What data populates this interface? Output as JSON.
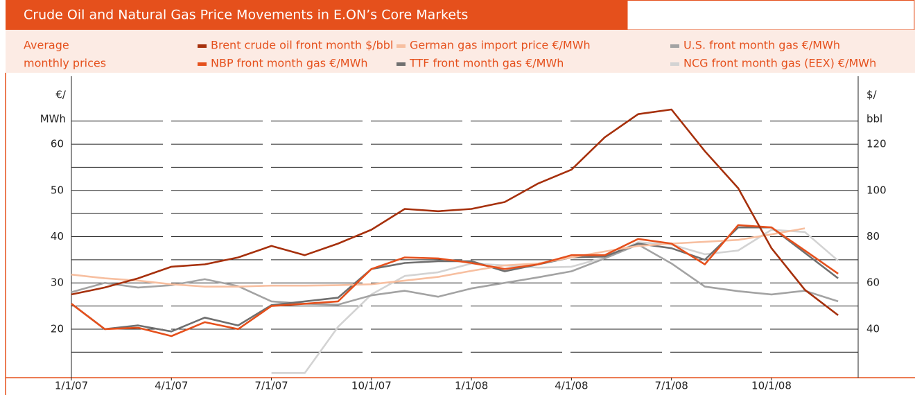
{
  "chart_data": {
    "type": "line",
    "title": "Crude Oil and Natural Gas Price Movements in E.ON’s Core Markets",
    "legend_title": [
      "Average",
      "monthly prices"
    ],
    "ylabel": [
      "€/",
      "MWh"
    ],
    "y2label": [
      "$/",
      "bbl"
    ],
    "x": [
      0,
      1,
      2,
      3,
      4,
      5,
      6,
      7,
      8,
      9,
      10,
      11,
      12,
      13,
      14,
      15,
      16,
      17,
      18,
      19,
      20,
      21,
      22,
      23
    ],
    "xlim": [
      0,
      23.6
    ],
    "xticks": [
      {
        "value": 0,
        "label": "1/1/07"
      },
      {
        "value": 3,
        "label": "4/1/07"
      },
      {
        "value": 6,
        "label": "7/1/07"
      },
      {
        "value": 9,
        "label": "10/1/07"
      },
      {
        "value": 12,
        "label": "1/1/08"
      },
      {
        "value": 15,
        "label": "4/1/08"
      },
      {
        "value": 18,
        "label": "7/1/08"
      },
      {
        "value": 21,
        "label": "10/1/08"
      }
    ],
    "ylim": [
      9.5,
      75
    ],
    "yticks": [
      20,
      30,
      40,
      50,
      60
    ],
    "ygrid": [
      15,
      25,
      35,
      45,
      55,
      65
    ],
    "y2lim": [
      19,
      150
    ],
    "y2ticks": [
      40,
      60,
      80,
      100,
      120
    ],
    "series": [
      {
        "name": "Brent crude oil front month $/bbl",
        "color": "#a6300c",
        "axis": "y2",
        "values": [
          55,
          58,
          62,
          67,
          68,
          71,
          76,
          72,
          77,
          83,
          92,
          91,
          92,
          95,
          103,
          109,
          123,
          133,
          135,
          117,
          101,
          75,
          57,
          46
        ]
      },
      {
        "name": "NBP front month gas €/MWh",
        "color": "#e5501c",
        "values": [
          25.5,
          20,
          20.3,
          18.5,
          21.5,
          20,
          25,
          25.5,
          26,
          33,
          35.5,
          35.3,
          34.3,
          33,
          34,
          36,
          36,
          39.5,
          38.5,
          34,
          42.5,
          42,
          37,
          32
        ]
      },
      {
        "name": "German gas import price €/MWh",
        "color": "#f7bfa0",
        "values": [
          31.8,
          31,
          30.5,
          29.7,
          29.2,
          29.2,
          29.4,
          29.4,
          29.5,
          29.7,
          30.5,
          31.3,
          32.6,
          33.8,
          34.2,
          35.5,
          36.8,
          38,
          38.5,
          38.9,
          39.3,
          40.5,
          41.8,
          null
        ]
      },
      {
        "name": "TTF front month gas €/MWh",
        "color": "#6f6f6f",
        "values": [
          25.5,
          20,
          20.8,
          19.5,
          22.5,
          20.8,
          25.2,
          26,
          26.8,
          33,
          34.3,
          34.7,
          34.7,
          32.5,
          34,
          35.5,
          35.7,
          38.5,
          37.5,
          35,
          42,
          42,
          36.5,
          31
        ]
      },
      {
        "name": "U.S. front month gas €/MWh",
        "color": "#a3a3a3",
        "values": [
          28,
          30,
          29,
          29.5,
          30.8,
          29.3,
          26,
          25.5,
          25.3,
          27.3,
          28.3,
          27,
          28.8,
          30,
          31.2,
          32.5,
          35.3,
          38.3,
          34.2,
          29.2,
          28.2,
          27.5,
          28.3,
          26
        ]
      },
      {
        "name": "NCG front month gas (EEX) €/MWh",
        "color": "#d3d3d3",
        "values": [
          null,
          null,
          null,
          null,
          null,
          null,
          10.5,
          10.5,
          20.5,
          27.5,
          31.5,
          32.3,
          34.2,
          33.8,
          33.3,
          33.5,
          35.5,
          38.8,
          38.3,
          36.2,
          37,
          41.5,
          41,
          34.8
        ]
      }
    ]
  }
}
